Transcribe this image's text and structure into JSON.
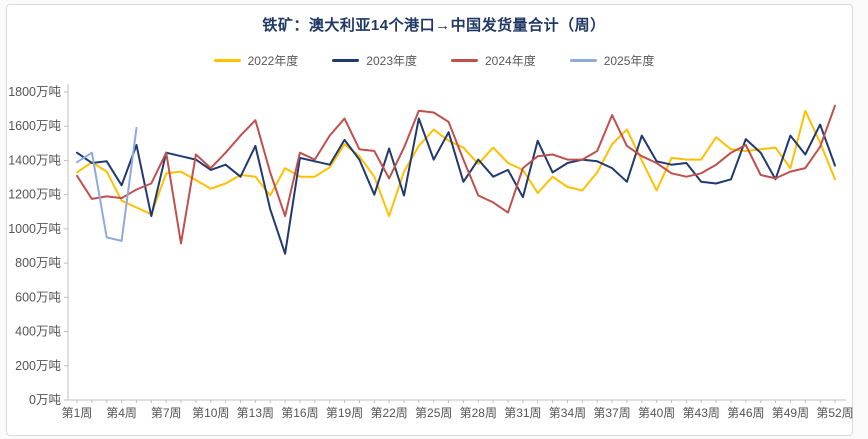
{
  "chart_data": {
    "type": "line",
    "title": "铁矿：澳大利亚14个港口→中国发货量合计（周）",
    "title_color": "#1F3864",
    "y_unit": "万吨",
    "ylim": [
      0,
      1800
    ],
    "y_tick_step": 200,
    "weeks": 52,
    "grid": false,
    "legend_position": "top",
    "axis_color": "#bfbfbf",
    "label_color": "#555555",
    "x_tick_labels": [
      "第1周",
      "第4周",
      "第7周",
      "第10周",
      "第13周",
      "第16周",
      "第19周",
      "第22周",
      "第25周",
      "第28周",
      "第31周",
      "第34周",
      "第37周",
      "第40周",
      "第43周",
      "第46周",
      "第49周",
      "第52周"
    ],
    "series": [
      {
        "name": "2022年度",
        "color": "#FFC000",
        "values": [
          1330,
          1390,
          1335,
          1165,
          1125,
          1085,
          1325,
          1335,
          1285,
          1235,
          1265,
          1315,
          1305,
          1195,
          1355,
          1305,
          1305,
          1360,
          1495,
          1425,
          1305,
          1075,
          1335,
          1485,
          1580,
          1515,
          1475,
          1380,
          1475,
          1385,
          1345,
          1210,
          1305,
          1245,
          1225,
          1330,
          1495,
          1580,
          1400,
          1225,
          1415,
          1405,
          1405,
          1535,
          1465,
          1455,
          1465,
          1475,
          1355,
          1690,
          1505,
          1290
        ]
      },
      {
        "name": "2023年度",
        "color": "#203A70",
        "values": [
          1445,
          1385,
          1395,
          1255,
          1490,
          1075,
          1445,
          1425,
          1405,
          1345,
          1375,
          1305,
          1485,
          1115,
          855,
          1415,
          1395,
          1375,
          1520,
          1405,
          1200,
          1470,
          1195,
          1645,
          1405,
          1565,
          1275,
          1405,
          1305,
          1345,
          1185,
          1515,
          1330,
          1385,
          1405,
          1395,
          1355,
          1275,
          1545,
          1395,
          1375,
          1385,
          1275,
          1265,
          1290,
          1525,
          1445,
          1290,
          1545,
          1435,
          1610,
          1370
        ]
      },
      {
        "name": "2024年度",
        "color": "#C0504D",
        "values": [
          1310,
          1175,
          1190,
          1180,
          1230,
          1265,
          1445,
          915,
          1435,
          1355,
          1445,
          1545,
          1635,
          1330,
          1075,
          1445,
          1405,
          1545,
          1645,
          1465,
          1455,
          1295,
          1475,
          1690,
          1680,
          1625,
          1405,
          1195,
          1155,
          1095,
          1355,
          1425,
          1435,
          1405,
          1405,
          1455,
          1665,
          1485,
          1425,
          1385,
          1325,
          1305,
          1325,
          1375,
          1445,
          1490,
          1315,
          1295,
          1335,
          1355,
          1480,
          1720
        ]
      },
      {
        "name": "2025年度",
        "color": "#8FAADC",
        "values": [
          1390,
          1445,
          950,
          930,
          1590
        ]
      }
    ]
  }
}
